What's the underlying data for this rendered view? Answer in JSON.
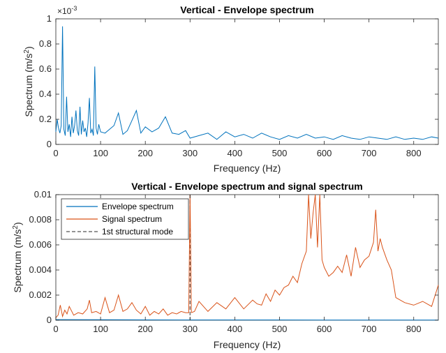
{
  "chart_data": [
    {
      "type": "line",
      "title": "Vertical - Envelope spectrum",
      "xlabel": "Frequency (Hz)",
      "ylabel_main": "Spectrum (m/s",
      "ylabel_sup": "2",
      "ylabel_end": ")",
      "exponent_label": "×10",
      "exponent_power": "-3",
      "xlim": [
        0,
        855
      ],
      "ylim": [
        0,
        1
      ],
      "xticks": [
        "0",
        "100",
        "200",
        "300",
        "400",
        "500",
        "600",
        "700",
        "800"
      ],
      "yticks": [
        "0",
        "0.2",
        "0.4",
        "0.6",
        "0.8",
        "1"
      ],
      "grid": false,
      "series": [
        {
          "color": "#0072BD",
          "x": [
            0,
            3,
            6,
            9,
            12,
            15,
            18,
            21,
            24,
            27,
            30,
            33,
            36,
            39,
            42,
            45,
            48,
            51,
            54,
            57,
            60,
            63,
            66,
            69,
            72,
            75,
            78,
            81,
            84,
            87,
            90,
            93,
            96,
            100,
            110,
            120,
            130,
            140,
            150,
            160,
            170,
            180,
            190,
            200,
            215,
            230,
            245,
            260,
            275,
            290,
            300,
            320,
            340,
            360,
            380,
            400,
            420,
            440,
            460,
            480,
            500,
            520,
            540,
            560,
            580,
            600,
            620,
            640,
            660,
            680,
            700,
            720,
            740,
            760,
            780,
            800,
            820,
            840,
            855
          ],
          "y": [
            0.1,
            0.2,
            0.13,
            0.09,
            0.15,
            0.94,
            0.12,
            0.07,
            0.38,
            0.1,
            0.16,
            0.06,
            0.22,
            0.09,
            0.15,
            0.27,
            0.11,
            0.07,
            0.3,
            0.08,
            0.19,
            0.1,
            0.13,
            0.06,
            0.17,
            0.37,
            0.09,
            0.12,
            0.07,
            0.62,
            0.13,
            0.08,
            0.16,
            0.1,
            0.09,
            0.12,
            0.15,
            0.25,
            0.08,
            0.11,
            0.19,
            0.27,
            0.09,
            0.14,
            0.1,
            0.13,
            0.22,
            0.09,
            0.08,
            0.11,
            0.05,
            0.07,
            0.09,
            0.04,
            0.1,
            0.06,
            0.08,
            0.05,
            0.09,
            0.06,
            0.04,
            0.07,
            0.05,
            0.08,
            0.05,
            0.06,
            0.04,
            0.07,
            0.05,
            0.04,
            0.06,
            0.05,
            0.04,
            0.06,
            0.04,
            0.05,
            0.04,
            0.06,
            0.05
          ]
        }
      ]
    },
    {
      "type": "line",
      "title": "Vertical - Envelope spectrum and signal spectrum",
      "xlabel": "Frequency (Hz)",
      "ylabel_main": "Spectrum (m/s",
      "ylabel_sup": "2",
      "ylabel_end": ")",
      "xlim": [
        0,
        855
      ],
      "ylim": [
        0,
        0.01
      ],
      "xticks": [
        "0",
        "100",
        "200",
        "300",
        "400",
        "500",
        "600",
        "700",
        "800"
      ],
      "yticks": [
        "0",
        "0.002",
        "0.004",
        "0.006",
        "0.008",
        "0.01"
      ],
      "grid": false,
      "legend_position": "top-left",
      "legend": [
        "Envelope spectrum",
        "Signal spectrum",
        "1st structural mode"
      ],
      "vline": {
        "x": 300,
        "color": "#555555",
        "style": "dashed"
      },
      "series": [
        {
          "name": "Envelope spectrum",
          "color": "#0072BD",
          "x": [
            0,
            100,
            200,
            300,
            400,
            500,
            600,
            700,
            800,
            855
          ],
          "y": [
            5e-05,
            4e-05,
            3e-05,
            2e-05,
            2e-05,
            2e-05,
            1e-05,
            1e-05,
            1e-05,
            1e-05
          ]
        },
        {
          "name": "Signal spectrum",
          "color": "#D95319",
          "x": [
            0,
            5,
            10,
            15,
            20,
            25,
            30,
            40,
            50,
            60,
            70,
            75,
            80,
            90,
            100,
            110,
            120,
            130,
            140,
            150,
            160,
            170,
            180,
            190,
            200,
            210,
            220,
            230,
            240,
            250,
            260,
            270,
            280,
            290,
            297,
            300,
            303,
            310,
            320,
            340,
            360,
            380,
            400,
            420,
            440,
            450,
            460,
            470,
            480,
            490,
            500,
            510,
            520,
            530,
            540,
            550,
            560,
            565,
            570,
            575,
            580,
            585,
            590,
            595,
            600,
            610,
            620,
            630,
            640,
            650,
            660,
            670,
            680,
            690,
            700,
            710,
            715,
            720,
            725,
            730,
            740,
            750,
            760,
            780,
            800,
            820,
            840,
            855
          ],
          "y": [
            0.0002,
            0.0004,
            0.0012,
            0.0003,
            0.0008,
            0.0005,
            0.0011,
            0.0004,
            0.0006,
            0.0005,
            0.0009,
            0.0016,
            0.0006,
            0.0007,
            0.0005,
            0.0018,
            0.0006,
            0.0008,
            0.002,
            0.0007,
            0.0009,
            0.0014,
            0.0008,
            0.0005,
            0.0011,
            0.0004,
            0.0007,
            0.0005,
            0.0009,
            0.0004,
            0.0006,
            0.0005,
            0.0007,
            0.0006,
            0.0006,
            0.01,
            0.0006,
            0.0007,
            0.0015,
            0.0007,
            0.0014,
            0.0009,
            0.0018,
            0.0009,
            0.0016,
            0.0013,
            0.0012,
            0.0021,
            0.0015,
            0.0024,
            0.002,
            0.0026,
            0.0028,
            0.0035,
            0.003,
            0.0045,
            0.0055,
            0.01,
            0.0065,
            0.0085,
            0.01,
            0.0058,
            0.01,
            0.0048,
            0.0042,
            0.0035,
            0.0038,
            0.0043,
            0.0038,
            0.0052,
            0.0035,
            0.0058,
            0.0042,
            0.0048,
            0.0051,
            0.0062,
            0.0088,
            0.0055,
            0.0065,
            0.0058,
            0.0048,
            0.004,
            0.0018,
            0.0014,
            0.0012,
            0.0015,
            0.0011,
            0.0028
          ]
        }
      ]
    }
  ]
}
